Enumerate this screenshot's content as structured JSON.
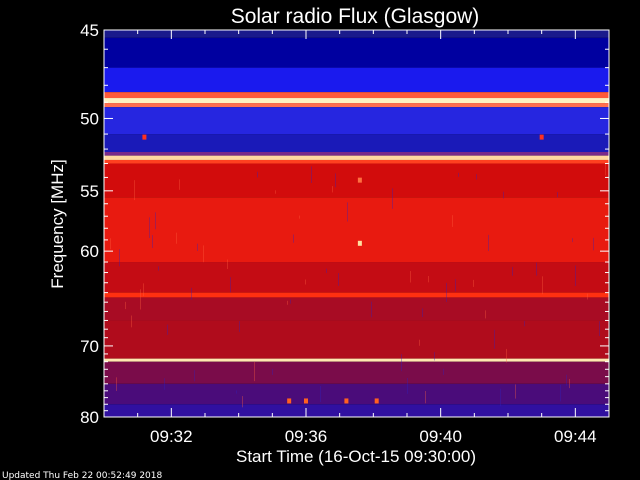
{
  "chart_data": {
    "type": "heatmap",
    "title": "Solar radio Flux (Glasgow)",
    "xlabel": "Start Time (16-Oct-15 09:30:00)",
    "ylabel": "Frequency [MHz]",
    "x_ticks": [
      "09:32",
      "09:36",
      "09:40",
      "09:44"
    ],
    "x_tick_minutes": [
      2,
      6,
      10,
      14
    ],
    "x_range_minutes": [
      0,
      15
    ],
    "y_ticks": [
      45,
      50,
      55,
      60,
      70,
      80
    ],
    "y_scale": "reciprocal",
    "ylim": [
      45,
      80
    ],
    "bands": [
      {
        "f0": 45.0,
        "f1": 45.4,
        "color": "#1a1a8c"
      },
      {
        "f0": 45.4,
        "f1": 47.0,
        "color": "#0000a0"
      },
      {
        "f0": 47.0,
        "f1": 48.4,
        "color": "#1a1aee"
      },
      {
        "f0": 48.4,
        "f1": 48.75,
        "color": "#ff5a3a"
      },
      {
        "f0": 48.75,
        "f1": 49.05,
        "color": "#fff2c0"
      },
      {
        "f0": 49.05,
        "f1": 49.3,
        "color": "#ff6f4f"
      },
      {
        "f0": 49.3,
        "f1": 51.0,
        "color": "#2626e0"
      },
      {
        "f0": 51.0,
        "f1": 52.2,
        "color": "#1a1ab8"
      },
      {
        "f0": 52.2,
        "f1": 52.45,
        "color": "#7a2a8a"
      },
      {
        "f0": 52.45,
        "f1": 52.75,
        "color": "#ffd9a0"
      },
      {
        "f0": 52.75,
        "f1": 53.0,
        "color": "#ff4020"
      },
      {
        "f0": 53.0,
        "f1": 55.5,
        "color": "#d20c0c"
      },
      {
        "f0": 55.5,
        "f1": 61.0,
        "color": "#e81a10"
      },
      {
        "f0": 61.0,
        "f1": 64.0,
        "color": "#c40c14"
      },
      {
        "f0": 64.0,
        "f1": 64.5,
        "color": "#ff3010"
      },
      {
        "f0": 64.5,
        "f1": 67.0,
        "color": "#a80c24"
      },
      {
        "f0": 67.0,
        "f1": 71.6,
        "color": "#b00c1c"
      },
      {
        "f0": 71.6,
        "f1": 72.0,
        "color": "#ffe8b0"
      },
      {
        "f0": 72.0,
        "f1": 75.0,
        "color": "#7a0c4a"
      },
      {
        "f0": 75.0,
        "f1": 78.0,
        "color": "#4a0c7a"
      },
      {
        "f0": 78.0,
        "f1": 80.0,
        "color": "#3010a0"
      }
    ],
    "bursts": [
      {
        "t": 1.2,
        "f": 51.2,
        "color": "#ff3020"
      },
      {
        "t": 13.0,
        "f": 51.2,
        "color": "#ff3020"
      },
      {
        "t": 7.6,
        "f": 54.2,
        "color": "#ff7040"
      },
      {
        "t": 7.6,
        "f": 59.3,
        "color": "#ffe0a0"
      },
      {
        "t": 5.5,
        "f": 77.5,
        "color": "#ff6020"
      },
      {
        "t": 6.0,
        "f": 77.5,
        "color": "#ff6020"
      },
      {
        "t": 7.2,
        "f": 77.5,
        "color": "#ff6020"
      },
      {
        "t": 8.1,
        "f": 77.5,
        "color": "#ff6020"
      }
    ]
  },
  "footer": {
    "updated": "Updated Thu Feb 22 00:52:49 2018"
  }
}
